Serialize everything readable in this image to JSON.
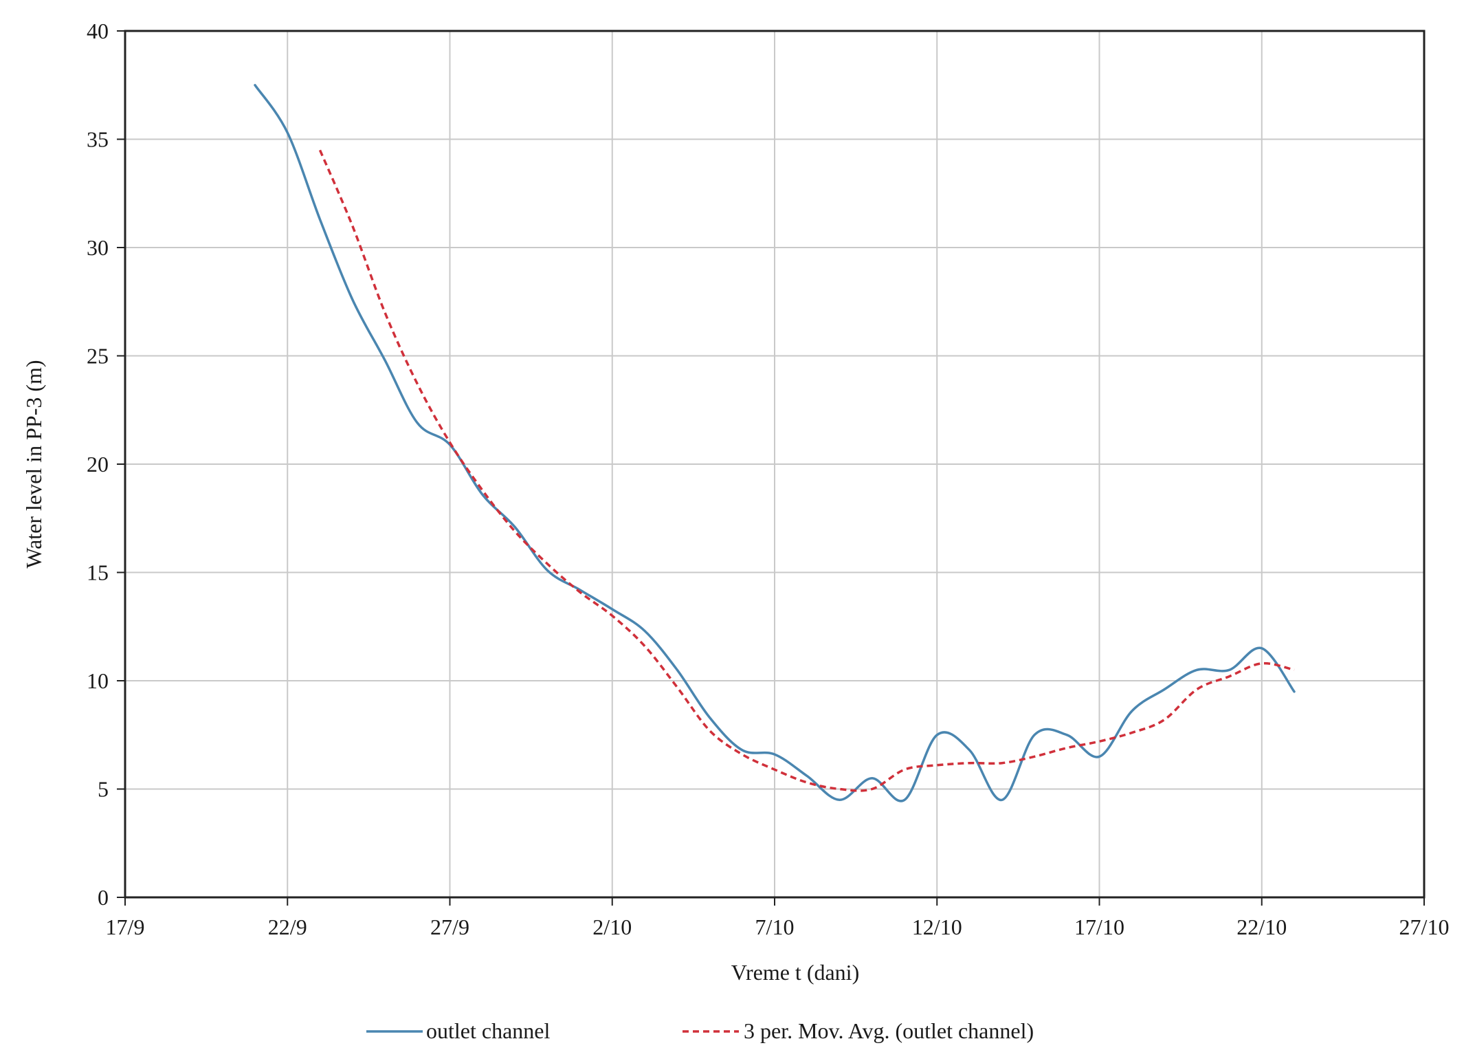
{
  "chart_data": {
    "type": "line",
    "xlabel": "Vreme t (dani)",
    "ylabel": "Water level in PP-3 (m)",
    "x_axis": {
      "start": "2023-09-17",
      "end": "2023-10-27",
      "ticks": [
        {
          "date": "2023-09-17",
          "label": "17/9"
        },
        {
          "date": "2023-09-22",
          "label": "22/9"
        },
        {
          "date": "2023-09-27",
          "label": "27/9"
        },
        {
          "date": "2023-10-02",
          "label": "2/10"
        },
        {
          "date": "2023-10-07",
          "label": "7/10"
        },
        {
          "date": "2023-10-12",
          "label": "12/10"
        },
        {
          "date": "2023-10-17",
          "label": "17/10"
        },
        {
          "date": "2023-10-22",
          "label": "22/10"
        },
        {
          "date": "2023-10-27",
          "label": "27/10"
        }
      ]
    },
    "ylim": [
      0,
      40
    ],
    "y_ticks": [
      0,
      5,
      10,
      15,
      20,
      25,
      30,
      35,
      40
    ],
    "grid": true,
    "legend_position": "bottom",
    "series": [
      {
        "name": "outlet channel",
        "color": "#4a86b0",
        "style": "solid",
        "points": [
          [
            "2023-09-21",
            37.5
          ],
          [
            "2023-09-22",
            35.3
          ],
          [
            "2023-09-23",
            31.3
          ],
          [
            "2023-09-24",
            27.6
          ],
          [
            "2023-09-25",
            24.8
          ],
          [
            "2023-09-26",
            21.9
          ],
          [
            "2023-09-27",
            20.9
          ],
          [
            "2023-09-28",
            18.6
          ],
          [
            "2023-09-29",
            17.1
          ],
          [
            "2023-09-30",
            15.1
          ],
          [
            "2023-10-01",
            14.2
          ],
          [
            "2023-10-02",
            13.3
          ],
          [
            "2023-10-03",
            12.3
          ],
          [
            "2023-10-04",
            10.5
          ],
          [
            "2023-10-05",
            8.3
          ],
          [
            "2023-10-06",
            6.8
          ],
          [
            "2023-10-07",
            6.6
          ],
          [
            "2023-10-08",
            5.6
          ],
          [
            "2023-10-09",
            4.5
          ],
          [
            "2023-10-10",
            5.5
          ],
          [
            "2023-10-11",
            4.5
          ],
          [
            "2023-10-12",
            7.5
          ],
          [
            "2023-10-13",
            6.8
          ],
          [
            "2023-10-14",
            4.5
          ],
          [
            "2023-10-15",
            7.5
          ],
          [
            "2023-10-16",
            7.5
          ],
          [
            "2023-10-17",
            6.5
          ],
          [
            "2023-10-18",
            8.6
          ],
          [
            "2023-10-19",
            9.6
          ],
          [
            "2023-10-20",
            10.5
          ],
          [
            "2023-10-21",
            10.5
          ],
          [
            "2023-10-22",
            11.5
          ],
          [
            "2023-10-23",
            9.5
          ]
        ]
      },
      {
        "name": "3 per. Mov. Avg. (outlet channel)",
        "color": "#d0303a",
        "style": "dashed",
        "points": [
          [
            "2023-09-23",
            34.5
          ],
          [
            "2023-09-24",
            31.0
          ],
          [
            "2023-09-25",
            27.0
          ],
          [
            "2023-09-26",
            23.7
          ],
          [
            "2023-09-27",
            21.0
          ],
          [
            "2023-09-28",
            18.8
          ],
          [
            "2023-09-29",
            16.9
          ],
          [
            "2023-09-30",
            15.4
          ],
          [
            "2023-10-01",
            14.1
          ],
          [
            "2023-10-02",
            13.0
          ],
          [
            "2023-10-03",
            11.6
          ],
          [
            "2023-10-04",
            9.7
          ],
          [
            "2023-10-05",
            7.7
          ],
          [
            "2023-10-06",
            6.6
          ],
          [
            "2023-10-07",
            5.9
          ],
          [
            "2023-10-08",
            5.3
          ],
          [
            "2023-10-09",
            5.0
          ],
          [
            "2023-10-10",
            5.0
          ],
          [
            "2023-10-11",
            5.9
          ],
          [
            "2023-10-12",
            6.1
          ],
          [
            "2023-10-13",
            6.2
          ],
          [
            "2023-10-14",
            6.2
          ],
          [
            "2023-10-15",
            6.5
          ],
          [
            "2023-10-16",
            6.9
          ],
          [
            "2023-10-17",
            7.2
          ],
          [
            "2023-10-18",
            7.6
          ],
          [
            "2023-10-19",
            8.2
          ],
          [
            "2023-10-20",
            9.6
          ],
          [
            "2023-10-21",
            10.2
          ],
          [
            "2023-10-22",
            10.8
          ],
          [
            "2023-10-23",
            10.5
          ]
        ]
      }
    ]
  }
}
